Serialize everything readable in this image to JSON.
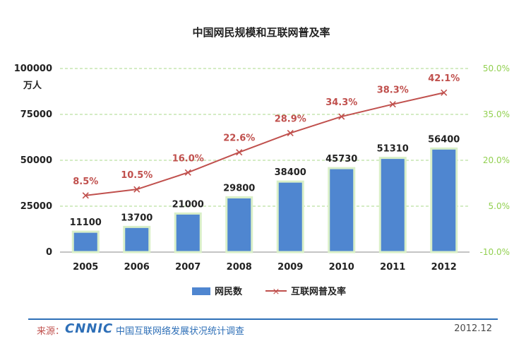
{
  "chart_data": {
    "type": "bar+line",
    "title": "中国网民规模和互联网普及率",
    "categories": [
      "2005",
      "2006",
      "2007",
      "2008",
      "2009",
      "2010",
      "2011",
      "2012"
    ],
    "series": [
      {
        "name": "网民数",
        "type": "bar",
        "axis": "left",
        "values": [
          11100,
          13700,
          21000,
          29800,
          38400,
          45730,
          51310,
          56400
        ],
        "labels": [
          "11100",
          "13700",
          "21000",
          "29800",
          "38400",
          "45730",
          "51310",
          "56400"
        ],
        "color": "#4f86d0"
      },
      {
        "name": "互联网普及率",
        "type": "line",
        "axis": "right",
        "values": [
          8.5,
          10.5,
          16.0,
          22.6,
          28.9,
          34.3,
          38.3,
          42.1
        ],
        "labels": [
          "8.5%",
          "10.5%",
          "16.0%",
          "22.6%",
          "28.9%",
          "34.3%",
          "38.3%",
          "42.1%"
        ],
        "color": "#c0504d"
      }
    ],
    "y_left": {
      "ylim": [
        0,
        100000
      ],
      "ticks": [
        "0",
        "25000",
        "50000",
        "75000",
        "100000"
      ],
      "unit": "万人"
    },
    "y_right": {
      "ylim": [
        -10,
        50
      ],
      "ticks": [
        "-10.0%",
        "5.0%",
        "20.0%",
        "35.0%",
        "50.0%"
      ],
      "values": [
        -10,
        5,
        20,
        35,
        50
      ],
      "color": "#92d050"
    },
    "grid": true,
    "legend_position": "bottom-center"
  },
  "footer": {
    "source_label": "来源：",
    "logo": "CNNIC",
    "org": "中国互联网络发展状况统计调查",
    "date": "2012.12"
  },
  "colors": {
    "bar": "#4f86d0",
    "bar_border": "#d9efc8",
    "line": "#c0504d",
    "right_axis": "#92d050",
    "grid": "#a9d98a",
    "footer_blue": "#2e6fb7"
  }
}
